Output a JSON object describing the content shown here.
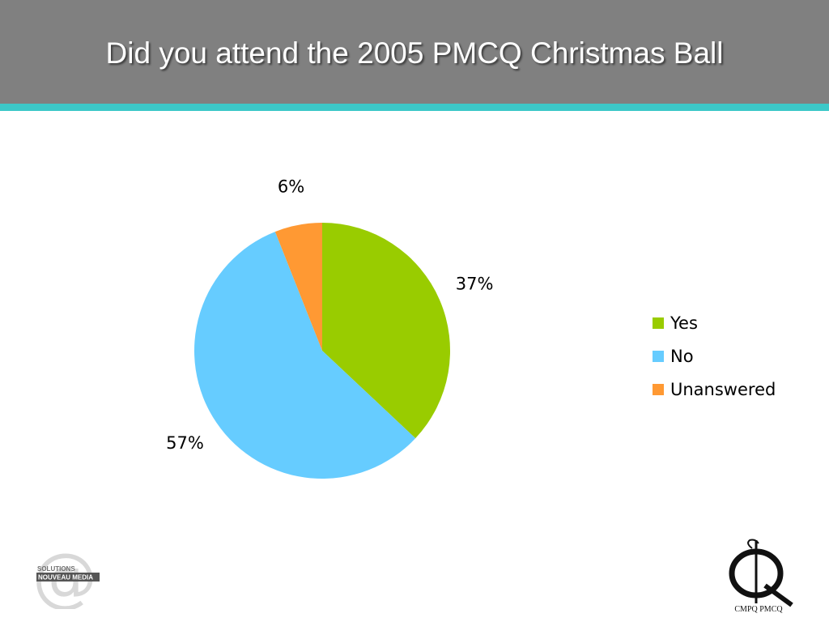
{
  "slide": {
    "title": "Did you attend the 2005 PMCQ Christmas Ball"
  },
  "chart_data": {
    "type": "pie",
    "title": "",
    "categories": [
      "Yes",
      "No",
      "Unanswered"
    ],
    "values": [
      37,
      57,
      6
    ],
    "labels": [
      "37%",
      "57%",
      "6%"
    ],
    "colors": [
      "#99cc00",
      "#66ccff",
      "#ff9933"
    ],
    "legend_position": "right"
  },
  "logos": {
    "left": {
      "line1": "SOLUTIONS",
      "line2": "NOUVEAU MEDIA",
      "icon": "at-sign-logo"
    },
    "right": {
      "text": "CMPQ PMCQ",
      "icon": "pmcq-logo"
    }
  },
  "colors": {
    "header": "#808080",
    "accent": "#3cc8c8"
  }
}
